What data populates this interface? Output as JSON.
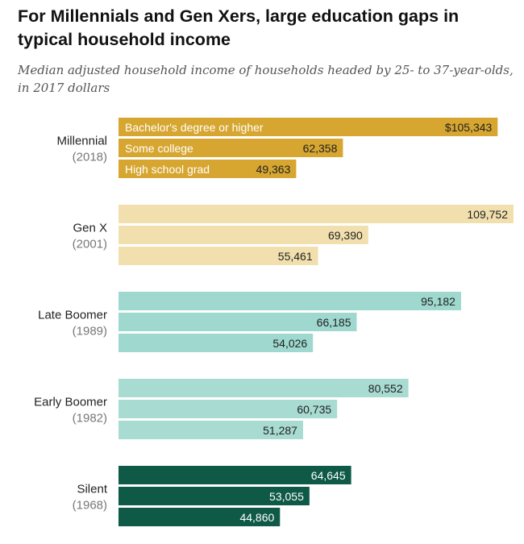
{
  "header": {
    "title": "For Millennials and Gen Xers, large education gaps in typical household income",
    "subtitle": "Median adjusted household income of households headed by 25- to 37-year-olds, in 2017 dollars"
  },
  "colors": {
    "millennial": "#d6a630",
    "genx": "#f1e0ae",
    "late_boomer": "#9ed8ce",
    "early_boomer": "#a8dbd1",
    "silent": "#0e5a47"
  },
  "chart_data": {
    "type": "bar",
    "orientation": "horizontal",
    "title": "For Millennials and Gen Xers, large education gaps in typical household income",
    "subtitle": "Median adjusted household income of households headed by 25- to 37-year-olds, in 2017 dollars",
    "categories": [
      "Bachelor's degree or higher",
      "Some college",
      "High school grad"
    ],
    "groups": [
      {
        "name": "Millennial",
        "year": "(2018)",
        "values": [
          105343,
          62358,
          49363
        ],
        "labels": [
          "$105,343",
          "62,358",
          "49,363"
        ],
        "color": "#d6a630",
        "text_color": "#222222",
        "category_label_color": "#ffffff"
      },
      {
        "name": "Gen X",
        "year": "(2001)",
        "values": [
          109752,
          69390,
          55461
        ],
        "labels": [
          "109,752",
          "69,390",
          "55,461"
        ],
        "color": "#f1e0ae",
        "text_color": "#222222"
      },
      {
        "name": "Late Boomer",
        "year": "(1989)",
        "values": [
          95182,
          66185,
          54026
        ],
        "labels": [
          "95,182",
          "66,185",
          "54,026"
        ],
        "color": "#9ed8ce",
        "text_color": "#222222"
      },
      {
        "name": "Early Boomer",
        "year": "(1982)",
        "values": [
          80552,
          60735,
          51287
        ],
        "labels": [
          "80,552",
          "60,735",
          "51,287"
        ],
        "color": "#a8dbd1",
        "text_color": "#222222"
      },
      {
        "name": "Silent",
        "year": "(1968)",
        "values": [
          64645,
          53055,
          44860
        ],
        "labels": [
          "64,645",
          "53,055",
          "44,860"
        ],
        "color": "#0e5a47",
        "text_color": "#ffffff"
      }
    ],
    "category_labels_shown_in_group": "Millennial",
    "xlim": [
      0,
      109752
    ],
    "grid": false,
    "legend": "none"
  }
}
